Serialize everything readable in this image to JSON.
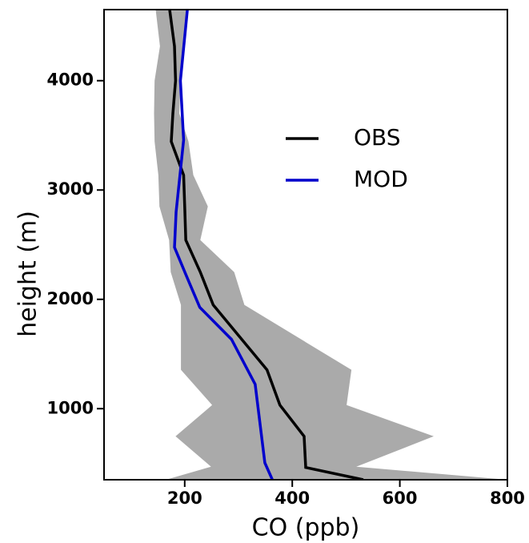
{
  "chart_data": {
    "type": "line",
    "xlabel": "CO (ppb)",
    "ylabel": "height (m)",
    "xlim": [
      50,
      800
    ],
    "ylim": [
      350,
      4650
    ],
    "xticks": [
      200,
      400,
      600,
      800
    ],
    "yticks": [
      1000,
      2000,
      3000,
      4000
    ],
    "range": {
      "color": "#aaaaaa",
      "y": [
        350,
        469,
        747,
        1033,
        1355,
        1949,
        2249,
        2542,
        2850,
        3136,
        3443,
        3700,
        4000,
        4315,
        4650
      ],
      "low": [
        165,
        249,
        183,
        251,
        193,
        193,
        174,
        171,
        153,
        151,
        144,
        143,
        144,
        154,
        146
      ],
      "high": [
        800,
        519,
        663,
        501,
        510,
        311,
        292,
        229,
        243,
        216,
        207,
        190,
        192,
        198,
        205
      ]
    },
    "series": [
      {
        "name": "OBS",
        "color": "#000000",
        "y": [
          350,
          462,
          747,
          1033,
          1355,
          1949,
          2249,
          2542,
          2850,
          3136,
          3443,
          3700,
          4000,
          4315,
          4650
        ],
        "values": [
          532,
          425,
          422,
          377,
          353,
          253,
          229,
          202,
          200,
          198,
          175,
          178,
          183,
          181,
          172
        ]
      },
      {
        "name": "MOD",
        "color": "#0000cc",
        "y": [
          350,
          505,
          1223,
          1634,
          1927,
          2205,
          2476,
          2799,
          3458,
          4000,
          4650
        ],
        "values": [
          363,
          349,
          331,
          287,
          228,
          204,
          181,
          184,
          198,
          192,
          205
        ]
      }
    ]
  }
}
